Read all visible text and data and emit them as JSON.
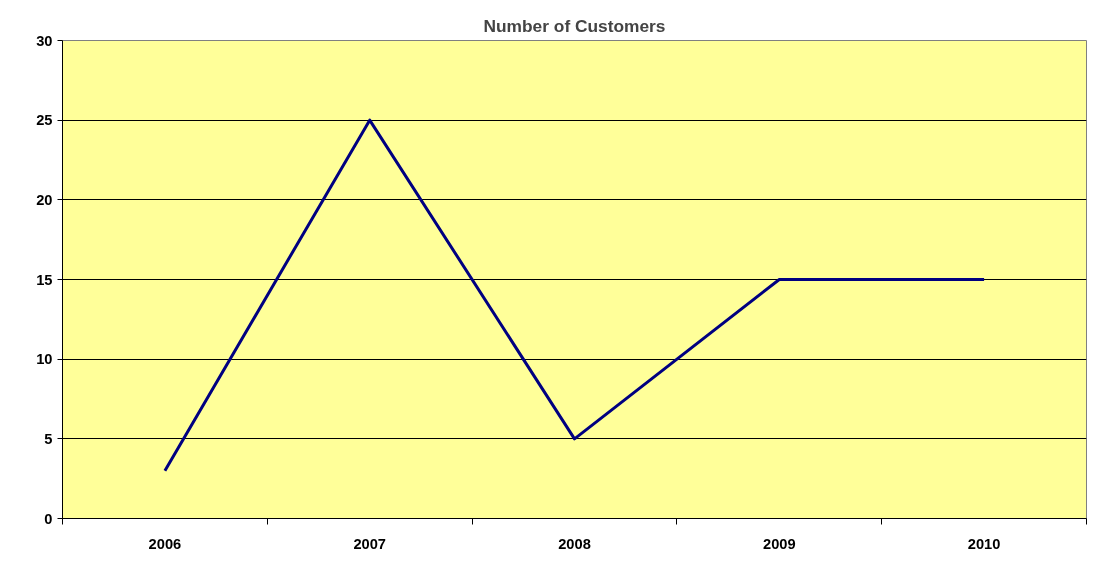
{
  "chart_data": {
    "type": "line",
    "title": "Number of Customers",
    "categories": [
      "2006",
      "2007",
      "2008",
      "2009",
      "2010"
    ],
    "values": [
      3,
      25,
      5,
      15,
      15
    ],
    "color": "#000080",
    "ylim": [
      0,
      30
    ],
    "yticks": [
      0,
      5,
      10,
      15,
      20,
      25,
      30
    ],
    "grid": "y"
  }
}
